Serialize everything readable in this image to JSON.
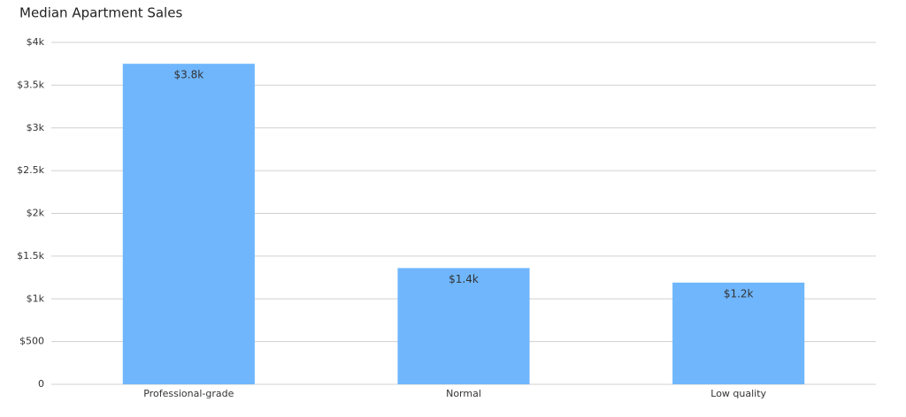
{
  "chart_data": {
    "type": "bar",
    "title": "Median Apartment Sales",
    "categories": [
      "Professional-grade",
      "Normal",
      "Low quality"
    ],
    "values": [
      3750,
      1360,
      1190
    ],
    "value_labels": [
      "$3.8k",
      "$1.4k",
      "$1.2k"
    ],
    "color": "#6fb6fd",
    "ylim": [
      0,
      4000
    ],
    "yticks": [
      0,
      {
        "value": 500,
        "label": "$500"
      },
      {
        "value": 1000,
        "label": "$1k"
      },
      {
        "value": 1500,
        "label": "$1.5k"
      },
      {
        "value": 2000,
        "label": "$2k"
      },
      {
        "value": 2500,
        "label": "$2.5k"
      },
      {
        "value": 3000,
        "label": "$3k"
      },
      {
        "value": 3500,
        "label": "$3.5k"
      },
      {
        "value": 4000,
        "label": "$4k"
      }
    ],
    "grid": true
  }
}
